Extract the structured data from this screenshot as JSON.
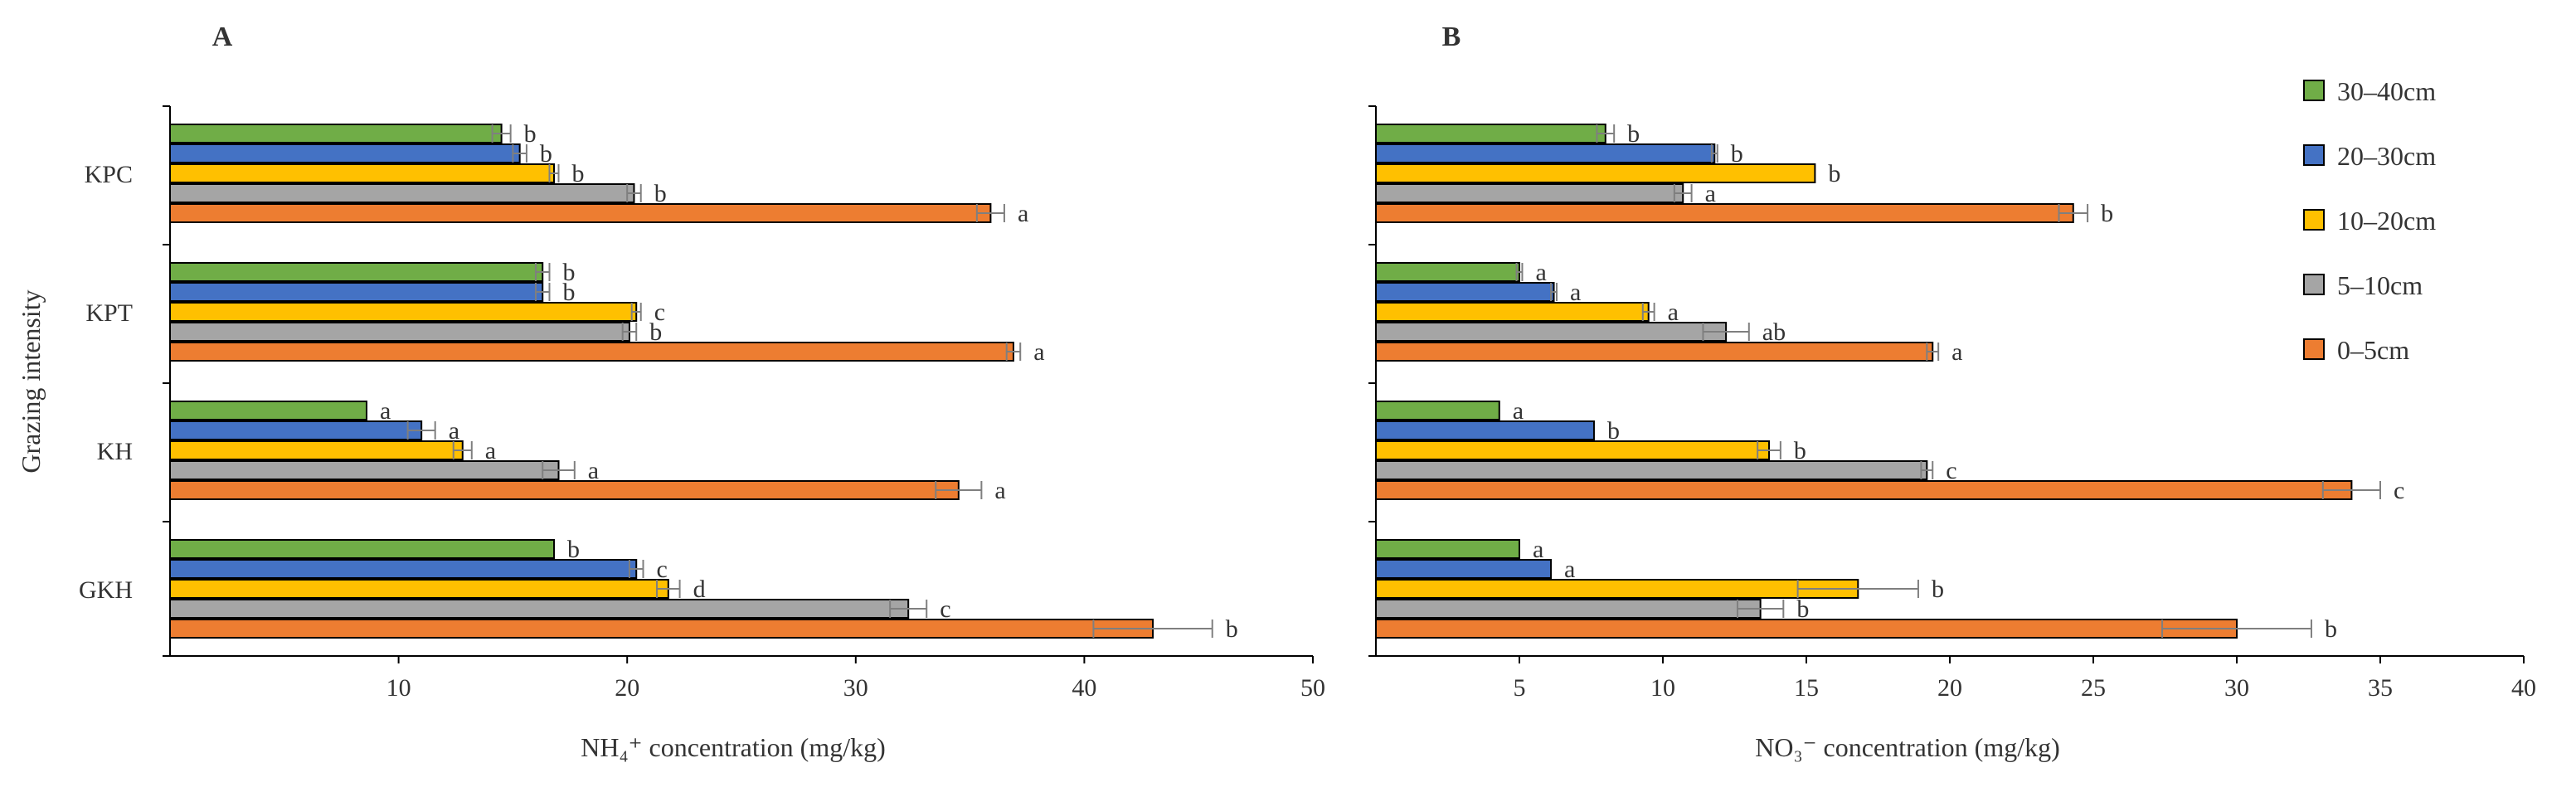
{
  "colors": {
    "30–40cm": "#70AD47",
    "20–30cm": "#4472C4",
    "10–20cm": "#FFC000",
    "5–10cm": "#A5A5A5",
    "0–5cm": "#ED7D31",
    "axis": "#000000",
    "errorbar": "#7f7f7f",
    "text": "#333333"
  },
  "legend": {
    "entries": [
      "30–40cm",
      "20–30cm",
      "10–20cm",
      "5–10cm",
      "0–5cm"
    ],
    "placement": "right"
  },
  "chart_data": [
    {
      "type": "bar",
      "orientation": "horizontal",
      "panel_label": "A",
      "title": "",
      "xlabel": "NH₄⁺ concentration (mg/kg)",
      "ylabel": "Grazing intensity",
      "xlim": [
        0,
        50
      ],
      "xticks": [
        10,
        20,
        30,
        40,
        50
      ],
      "categories": [
        "KPC",
        "KPT",
        "KH",
        "GKH"
      ],
      "series": [
        {
          "name": "30–40cm",
          "values": [
            14.5,
            16.3,
            8.6,
            16.8
          ],
          "errors": [
            0.4,
            0.3,
            0.0,
            0.0
          ],
          "labels": [
            "b",
            "b",
            "a",
            "b"
          ]
        },
        {
          "name": "20–30cm",
          "values": [
            15.3,
            16.3,
            11.0,
            20.4
          ],
          "errors": [
            0.3,
            0.3,
            0.6,
            0.3
          ],
          "labels": [
            "b",
            "b",
            "a",
            "c"
          ]
        },
        {
          "name": "10–20cm",
          "values": [
            16.8,
            20.4,
            12.8,
            21.8
          ],
          "errors": [
            0.2,
            0.2,
            0.4,
            0.5
          ],
          "labels": [
            "b",
            "c",
            "a",
            "d"
          ]
        },
        {
          "name": "5–10cm",
          "values": [
            20.3,
            20.1,
            17.0,
            32.3
          ],
          "errors": [
            0.3,
            0.3,
            0.7,
            0.8
          ],
          "labels": [
            "b",
            "b",
            "a",
            "c"
          ]
        },
        {
          "name": "0–5cm",
          "values": [
            35.9,
            36.9,
            34.5,
            43.0
          ],
          "errors": [
            0.6,
            0.3,
            1.0,
            2.6
          ],
          "labels": [
            "a",
            "a",
            "a",
            "b"
          ]
        }
      ]
    },
    {
      "type": "bar",
      "orientation": "horizontal",
      "panel_label": "B",
      "title": "",
      "xlabel": "NO₃⁻ concentration  (mg/kg)",
      "ylabel": "",
      "xlim": [
        0,
        40
      ],
      "xticks": [
        5,
        10,
        15,
        20,
        25,
        30,
        35,
        40
      ],
      "categories": [
        "KPC",
        "KPT",
        "KH",
        "GKH"
      ],
      "series": [
        {
          "name": "30–40cm",
          "values": [
            8.0,
            5.0,
            4.3,
            5.0
          ],
          "errors": [
            0.3,
            0.1,
            0.0,
            0.0
          ],
          "labels": [
            "b",
            "a",
            "a",
            "a"
          ]
        },
        {
          "name": "20–30cm",
          "values": [
            11.8,
            6.2,
            7.6,
            6.1
          ],
          "errors": [
            0.1,
            0.1,
            0.0,
            0.0
          ],
          "labels": [
            "b",
            "a",
            "b",
            "a"
          ]
        },
        {
          "name": "10–20cm",
          "values": [
            15.3,
            9.5,
            13.7,
            16.8
          ],
          "errors": [
            0.0,
            0.2,
            0.4,
            2.1
          ],
          "labels": [
            "b",
            "a",
            "b",
            "b"
          ]
        },
        {
          "name": "5–10cm",
          "values": [
            10.7,
            12.2,
            19.2,
            13.4
          ],
          "errors": [
            0.3,
            0.8,
            0.2,
            0.8
          ],
          "labels": [
            "a",
            "ab",
            "c",
            "b"
          ]
        },
        {
          "name": "0–5cm",
          "values": [
            24.3,
            19.4,
            34.0,
            30.0
          ],
          "errors": [
            0.5,
            0.2,
            1.0,
            2.6
          ],
          "labels": [
            "b",
            "a",
            "c",
            "b"
          ]
        }
      ]
    }
  ]
}
